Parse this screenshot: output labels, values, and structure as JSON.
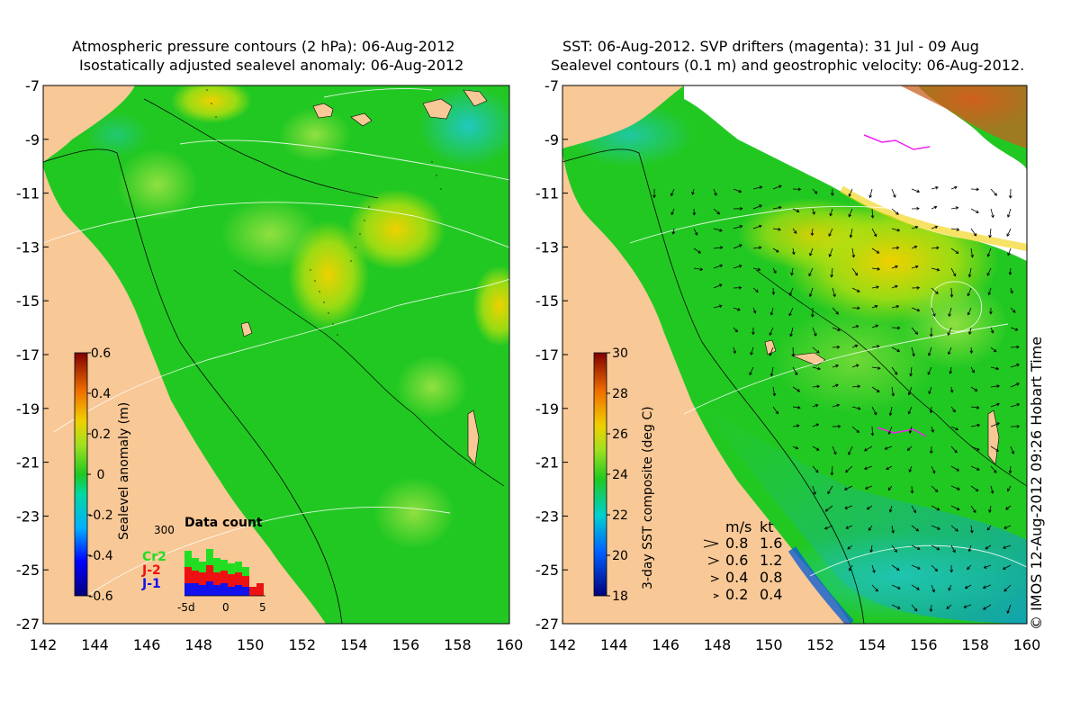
{
  "left_panel": {
    "title_line1": "Atmospheric pressure contours (2 hPa): 06-Aug-2012",
    "title_line2": "Isostatically adjusted sealevel anomaly: 06-Aug-2012",
    "colorbar_label": "Sealevel anomaly (m)",
    "colorbar_ticks": [
      "0.6",
      "0.4",
      "0.2",
      "0",
      "-0.2",
      "-0.4",
      "-0.6"
    ],
    "inset": {
      "title": "Data count",
      "y_max_label": "300",
      "x_labels": [
        "-5d",
        "0",
        "5"
      ],
      "legend": [
        {
          "label": "Cr2",
          "color": "#22dd22"
        },
        {
          "label": "J-2",
          "color": "#ee1111"
        },
        {
          "label": "J-1",
          "color": "#1111ee"
        }
      ]
    }
  },
  "right_panel": {
    "title_line1": "SST: 06-Aug-2012. SVP drifters (magenta): 31 Jul - 09 Aug",
    "title_line2": "Sealevel contours (0.1 m) and geostrophic velocity: 06-Aug-2012.",
    "colorbar_label": "3-day SST composite (deg C)",
    "colorbar_ticks": [
      "30",
      "28",
      "26",
      "24",
      "22",
      "20",
      "18"
    ],
    "velocity_legend": {
      "header_ms": "m/s",
      "header_kt": "kt",
      "rows": [
        {
          "ms": "0.8",
          "kt": "1.6"
        },
        {
          "ms": "0.6",
          "kt": "1.2"
        },
        {
          "ms": "0.4",
          "kt": "0.8"
        },
        {
          "ms": "0.2",
          "kt": "0.4"
        }
      ]
    }
  },
  "axes": {
    "lat_labels": [
      "-7",
      "-9",
      "-11",
      "-13",
      "-15",
      "-17",
      "-19",
      "-21",
      "-23",
      "-25",
      "-27"
    ],
    "lon_labels": [
      "142",
      "144",
      "146",
      "148",
      "150",
      "152",
      "154",
      "156",
      "158",
      "160"
    ]
  },
  "copyright": "© IMOS 12-Aug-2012 09:26 Hobart Time",
  "colors": {
    "land": "#f8c896",
    "ocean_base": "#22c822",
    "no_data": "#ffffff",
    "drifter": "#ee22ee"
  }
}
